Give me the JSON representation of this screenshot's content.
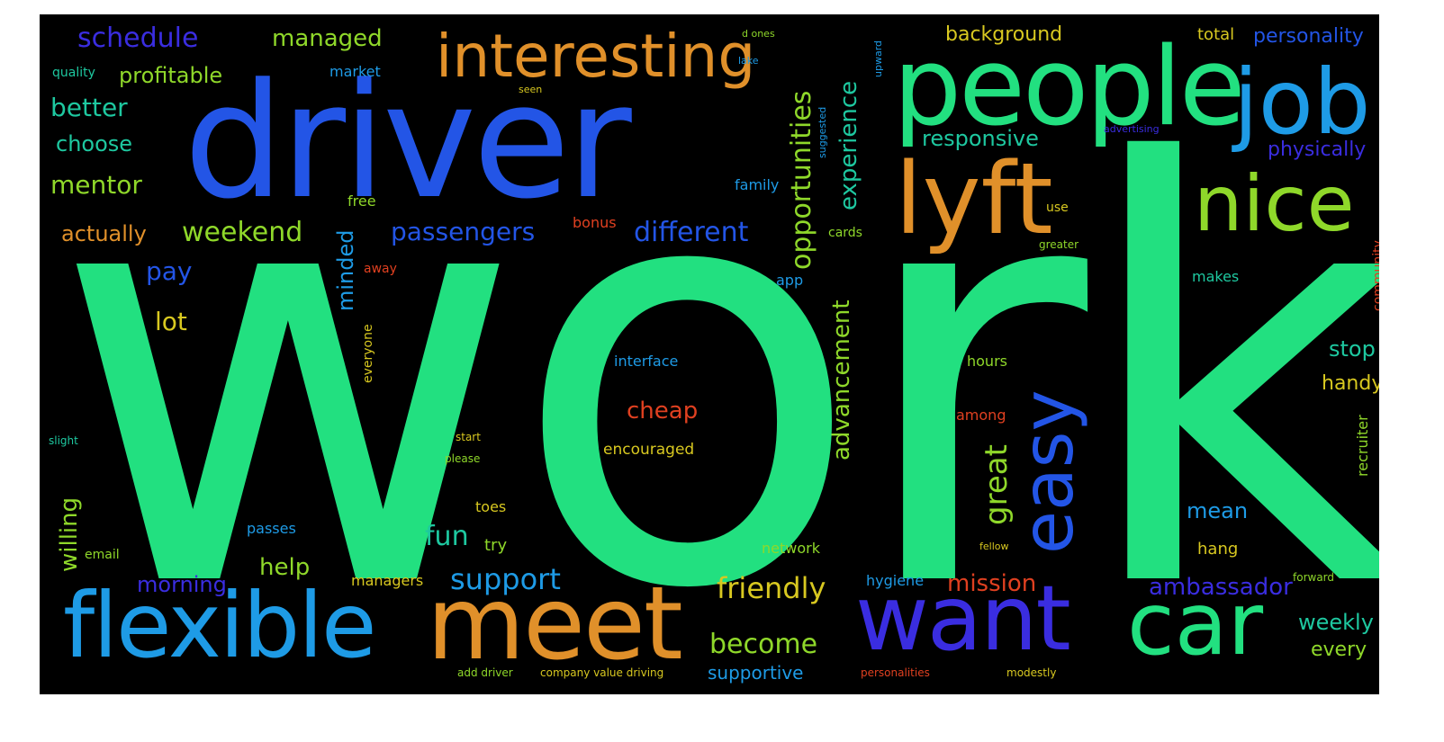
{
  "colors": {
    "background": "#000000",
    "green": "#22e080",
    "blue": "#2355e6",
    "sky": "#1e9be6",
    "orange": "#e0902a",
    "lime": "#8fd82a",
    "indigo": "#3a2de0",
    "teal": "#1ec8a0",
    "red": "#e04020",
    "yellow": "#d8c820"
  },
  "words": {
    "work": "work",
    "driver": "driver",
    "people": "people",
    "job": "job",
    "lyft": "lyft",
    "nice": "nice",
    "easy": "easy",
    "flexible": "flexible",
    "meet": "meet",
    "want": "want",
    "car": "car",
    "interesting": "interesting",
    "schedule": "schedule",
    "managed": "managed",
    "profitable": "profitable",
    "better": "better",
    "choose": "choose",
    "mentor": "mentor",
    "actually": "actually",
    "weekend": "weekend",
    "passengers": "passengers",
    "different": "different",
    "opportunities": "opportunities",
    "experience": "experience",
    "responsive": "responsive",
    "background": "background",
    "total": "total",
    "personality": "personality",
    "physically": "physically",
    "pay": "pay",
    "lot": "lot",
    "minded": "minded",
    "advancement": "advancement",
    "interface": "interface",
    "cheap": "cheap",
    "encouraged": "encouraged",
    "great": "great",
    "hours": "hours",
    "among": "among",
    "stop": "stop",
    "handy": "handy",
    "mean": "mean",
    "hang": "hang",
    "willing": "willing",
    "fun": "fun",
    "help": "help",
    "morning": "morning",
    "support": "support",
    "friendly": "friendly",
    "become": "become",
    "supportive": "supportive",
    "mission": "mission",
    "ambassador": "ambassador",
    "weekly": "weekly",
    "every": "every",
    "network": "network",
    "managers": "managers",
    "hygiene": "hygiene",
    "passes": "passes",
    "email": "email",
    "toes": "toes",
    "try": "try",
    "free": "free",
    "family": "family",
    "bonus": "bonus",
    "app": "app",
    "away": "away",
    "cards": "cards",
    "makes": "makes",
    "use": "use",
    "market": "market",
    "quality": "quality",
    "recruiter": "recruiter",
    "community": "community",
    "everyone": "everyone",
    "slight": "slight",
    "start": "start",
    "please": "please",
    "forward": "forward",
    "personalities": "personalities",
    "modestly": "modestly",
    "add_driver": "add driver",
    "company_value": "company value driving",
    "greater": "greater",
    "lake": "lake",
    "seen": "seen",
    "advertising": "advertising",
    "fellow": "fellow",
    "d_ones": "d ones",
    "upward": "upward",
    "suggested": "suggested"
  }
}
